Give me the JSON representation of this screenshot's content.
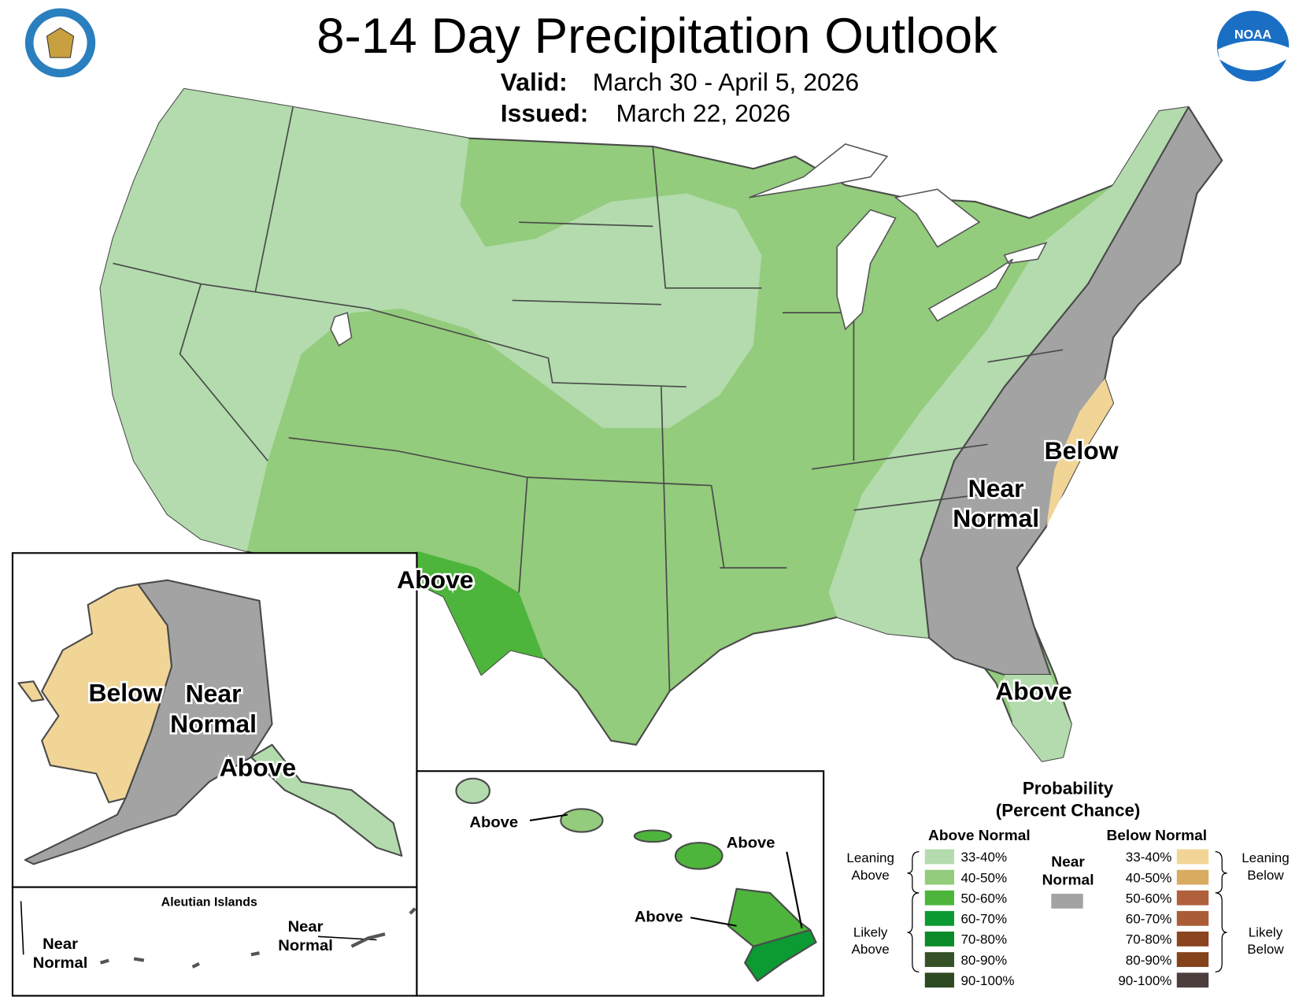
{
  "header": {
    "title": "8-14 Day Precipitation Outlook",
    "valid_label": "Valid:",
    "valid_text": "March 30 - April 5, 2026",
    "issued_label": "Issued:",
    "issued_text": "March 22, 2026",
    "noaa_logo": "NOAA"
  },
  "map_labels": {
    "conus": [
      [
        "Above"
      ],
      [
        "Below"
      ],
      [
        "Near",
        "Normal"
      ],
      [
        "Above"
      ]
    ],
    "alaska": [
      [
        "Below"
      ],
      [
        "Near",
        "Normal"
      ],
      [
        "Above"
      ]
    ],
    "aleutians": {
      "title": "Aleutian Islands",
      "labels": [
        [
          "Near",
          "Normal"
        ],
        [
          "Near",
          "Normal"
        ]
      ]
    },
    "hawaii": [
      [
        "Above"
      ],
      [
        "Above"
      ],
      [
        "Above"
      ]
    ]
  },
  "legend": {
    "title": [
      "Probability",
      "(Percent Chance)"
    ],
    "above_header": "Above Normal",
    "below_header": "Below Normal",
    "near_label": [
      "Near",
      "Normal"
    ],
    "near_color": "#a3a3a3",
    "leaning_above": [
      "Leaning",
      "Above"
    ],
    "likely_above": [
      "Likely",
      "Above"
    ],
    "leaning_below": [
      "Leaning",
      "Below"
    ],
    "likely_below": [
      "Likely",
      "Below"
    ],
    "above": [
      {
        "label": "33-40%",
        "color": "#b3dbad"
      },
      {
        "label": "40-50%",
        "color": "#93cc7c"
      },
      {
        "label": "50-60%",
        "color": "#4db53b"
      },
      {
        "label": "60-70%",
        "color": "#0c9a32"
      },
      {
        "label": "70-80%",
        "color": "#0a8a28"
      },
      {
        "label": "80-90%",
        "color": "#355226"
      },
      {
        "label": "90-100%",
        "color": "#2c4a22"
      }
    ],
    "below": [
      {
        "label": "33-40%",
        "color": "#f1d597"
      },
      {
        "label": "40-50%",
        "color": "#d9ab60"
      },
      {
        "label": "50-60%",
        "color": "#b0603b"
      },
      {
        "label": "60-70%",
        "color": "#a95c35"
      },
      {
        "label": "70-80%",
        "color": "#8b4320"
      },
      {
        "label": "80-90%",
        "color": "#85431c"
      },
      {
        "label": "90-100%",
        "color": "#4d3e3e"
      }
    ]
  }
}
